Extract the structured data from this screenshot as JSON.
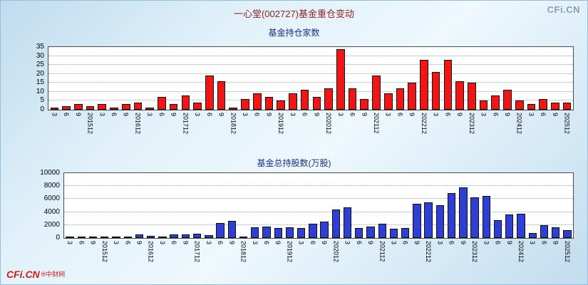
{
  "header": {
    "title": "一心堂(002727)基金重仓变动",
    "watermark": "CFi.CN"
  },
  "footer": {
    "logo_main": "CFi.CN",
    "logo_sub": "®中财网"
  },
  "chart_data": [
    {
      "type": "bar",
      "title": "基金持仓家数",
      "bar_color": "#f21515",
      "bar_border": "#101010",
      "ylim": [
        0,
        35
      ],
      "yticks": [
        0,
        5,
        10,
        15,
        20,
        25,
        30,
        35
      ],
      "grid": "horizontal-dotted",
      "legend_position": "none",
      "categories": [
        "3",
        "6",
        "9",
        "201512",
        "3",
        "6",
        "9",
        "201612",
        "3",
        "6",
        "9",
        "201712",
        "3",
        "6",
        "9",
        "201812",
        "3",
        "6",
        "9",
        "201912",
        "3",
        "6",
        "9",
        "202012",
        "3",
        "6",
        "9",
        "202112",
        "3",
        "6",
        "9",
        "202212",
        "3",
        "6",
        "9",
        "202312",
        "3",
        "6",
        "9",
        "202412",
        "3",
        "6",
        "9",
        "202512"
      ],
      "values": [
        1,
        2,
        3,
        2,
        3,
        1,
        3,
        4,
        1,
        7,
        3,
        8,
        4,
        19,
        16,
        1,
        6,
        9,
        7,
        5,
        9,
        11,
        7,
        12,
        34,
        12,
        6,
        19,
        9,
        12,
        15,
        28,
        21,
        28,
        16,
        15,
        5,
        8,
        11,
        5,
        3,
        6,
        4,
        4
      ]
    },
    {
      "type": "bar",
      "title": "基金总持股数(万股)",
      "bar_color": "#2f3fd3",
      "bar_border": "#101010",
      "ylim": [
        0,
        10000
      ],
      "yticks": [
        0,
        2000,
        4000,
        6000,
        8000,
        10000
      ],
      "grid": "horizontal-dotted",
      "legend_position": "none",
      "categories": [
        "3",
        "6",
        "9",
        "201512",
        "3",
        "6",
        "9",
        "201612",
        "3",
        "6",
        "9",
        "201712",
        "3",
        "6",
        "9",
        "201812",
        "3",
        "6",
        "9",
        "201912",
        "3",
        "6",
        "9",
        "202012",
        "3",
        "6",
        "9",
        "202112",
        "3",
        "6",
        "9",
        "202212",
        "3",
        "6",
        "9",
        "202312",
        "3",
        "6",
        "9",
        "202412",
        "3",
        "6",
        "9",
        "202512"
      ],
      "values": [
        100,
        150,
        250,
        200,
        150,
        100,
        500,
        300,
        150,
        500,
        600,
        700,
        400,
        2300,
        2600,
        150,
        1700,
        1800,
        1500,
        1600,
        1500,
        2200,
        2500,
        4400,
        4700,
        1500,
        1800,
        2200,
        1400,
        1500,
        5300,
        5500,
        5000,
        6900,
        7800,
        6300,
        6500,
        2800,
        3600,
        3700,
        800,
        2000,
        1700,
        1200
      ]
    }
  ]
}
